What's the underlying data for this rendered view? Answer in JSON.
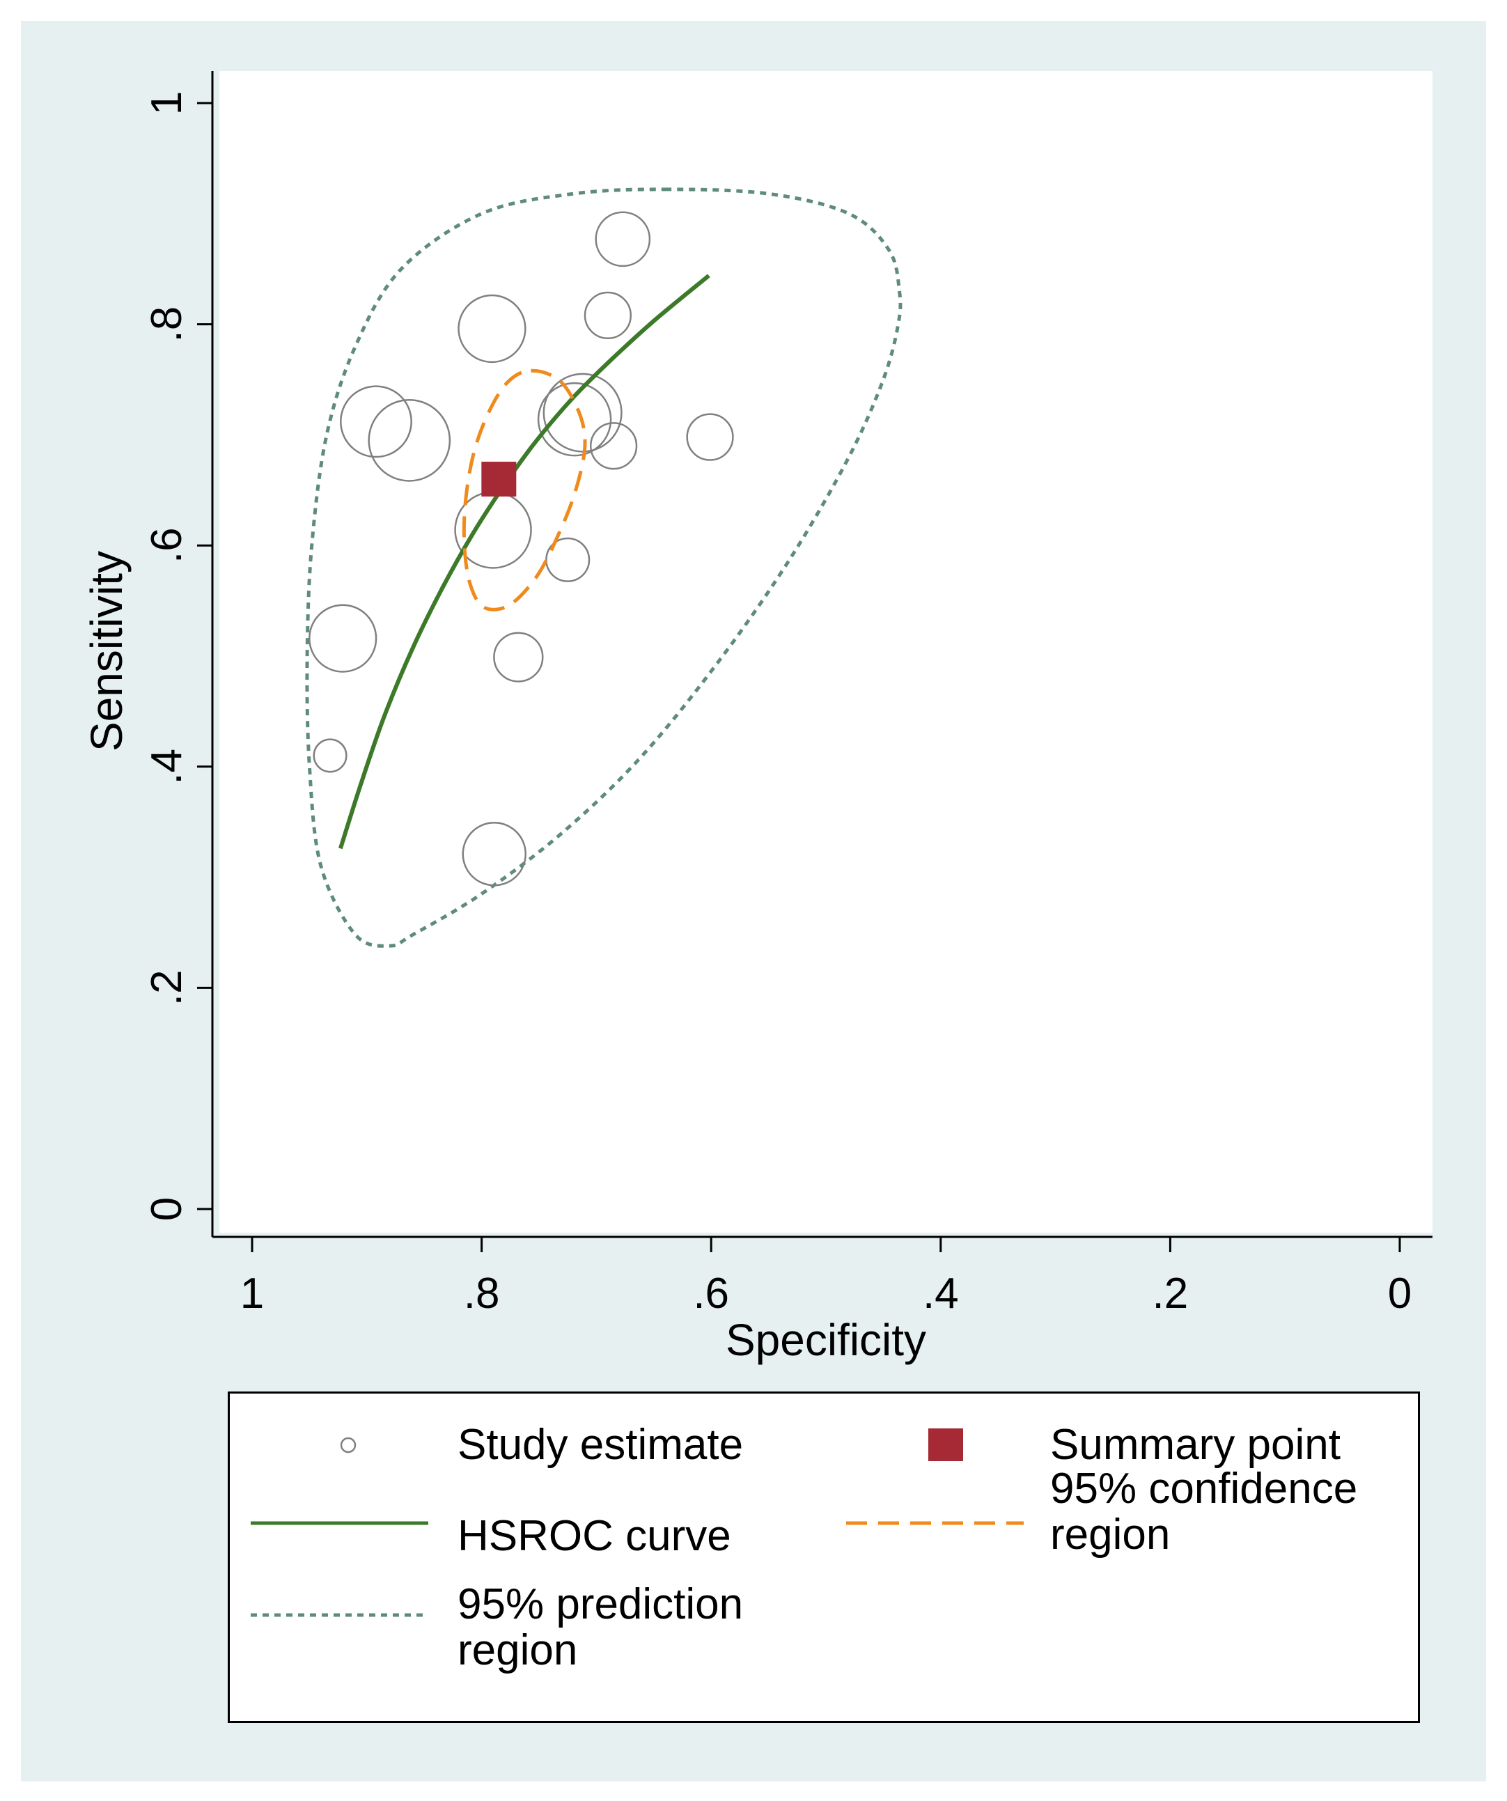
{
  "chart_data": {
    "type": "scatter",
    "xlabel": "Specificity",
    "ylabel": "Sensitivity",
    "xlim": [
      1,
      0
    ],
    "ylim": [
      0,
      1
    ],
    "x_ticks": [
      1,
      0.8,
      0.6,
      0.4,
      0.2,
      0
    ],
    "x_tick_labels": [
      "1",
      ".8",
      ".6",
      ".4",
      ".2",
      "0"
    ],
    "y_ticks": [
      0,
      0.2,
      0.4,
      0.6,
      0.8,
      1
    ],
    "y_tick_labels": [
      "0",
      ".2",
      ".4",
      ".6",
      ".8",
      "1"
    ],
    "grid": false,
    "study_estimates": [
      {
        "specificity": 0.677,
        "sensitivity": 0.877,
        "weight": 0.55
      },
      {
        "specificity": 0.69,
        "sensitivity": 0.808,
        "weight": 0.4
      },
      {
        "specificity": 0.791,
        "sensitivity": 0.796,
        "weight": 0.85
      },
      {
        "specificity": 0.892,
        "sensitivity": 0.712,
        "weight": 0.95
      },
      {
        "specificity": 0.863,
        "sensitivity": 0.695,
        "weight": 1.25
      },
      {
        "specificity": 0.719,
        "sensitivity": 0.714,
        "weight": 1.0
      },
      {
        "specificity": 0.712,
        "sensitivity": 0.72,
        "weight": 1.15
      },
      {
        "specificity": 0.685,
        "sensitivity": 0.69,
        "weight": 0.4
      },
      {
        "specificity": 0.601,
        "sensitivity": 0.698,
        "weight": 0.4
      },
      {
        "specificity": 0.79,
        "sensitivity": 0.614,
        "weight": 1.1
      },
      {
        "specificity": 0.725,
        "sensitivity": 0.587,
        "weight": 0.35
      },
      {
        "specificity": 0.921,
        "sensitivity": 0.516,
        "weight": 0.85
      },
      {
        "specificity": 0.768,
        "sensitivity": 0.499,
        "weight": 0.45
      },
      {
        "specificity": 0.932,
        "sensitivity": 0.41,
        "weight": 0.2
      },
      {
        "specificity": 0.789,
        "sensitivity": 0.321,
        "weight": 0.75
      }
    ],
    "summary_point": {
      "specificity": 0.785,
      "sensitivity": 0.66
    },
    "hsroc_curve": [
      [
        0.923,
        0.326
      ],
      [
        0.905,
        0.385
      ],
      [
        0.885,
        0.445
      ],
      [
        0.861,
        0.505
      ],
      [
        0.835,
        0.56
      ],
      [
        0.808,
        0.61
      ],
      [
        0.78,
        0.655
      ],
      [
        0.752,
        0.695
      ],
      [
        0.72,
        0.734
      ],
      [
        0.687,
        0.768
      ],
      [
        0.65,
        0.803
      ],
      [
        0.602,
        0.844
      ]
    ],
    "confidence_region": [
      [
        0.757,
        0.758
      ],
      [
        0.732,
        0.749
      ],
      [
        0.715,
        0.72
      ],
      [
        0.71,
        0.69
      ],
      [
        0.718,
        0.65
      ],
      [
        0.733,
        0.61
      ],
      [
        0.752,
        0.572
      ],
      [
        0.776,
        0.546
      ],
      [
        0.798,
        0.544
      ],
      [
        0.81,
        0.565
      ],
      [
        0.815,
        0.6
      ],
      [
        0.814,
        0.64
      ],
      [
        0.807,
        0.683
      ],
      [
        0.794,
        0.72
      ],
      [
        0.777,
        0.748
      ],
      [
        0.757,
        0.758
      ]
    ],
    "prediction_region": [
      [
        0.64,
        0.922
      ],
      [
        0.55,
        0.918
      ],
      [
        0.48,
        0.9
      ],
      [
        0.445,
        0.867
      ],
      [
        0.436,
        0.83
      ],
      [
        0.437,
        0.8
      ],
      [
        0.45,
        0.75
      ],
      [
        0.48,
        0.68
      ],
      [
        0.53,
        0.59
      ],
      [
        0.59,
        0.5
      ],
      [
        0.66,
        0.41
      ],
      [
        0.73,
        0.34
      ],
      [
        0.8,
        0.285
      ],
      [
        0.86,
        0.248
      ],
      [
        0.88,
        0.238
      ],
      [
        0.91,
        0.248
      ],
      [
        0.94,
        0.31
      ],
      [
        0.95,
        0.4
      ],
      [
        0.952,
        0.5
      ],
      [
        0.948,
        0.6
      ],
      [
        0.935,
        0.7
      ],
      [
        0.91,
        0.78
      ],
      [
        0.87,
        0.85
      ],
      [
        0.8,
        0.9
      ],
      [
        0.72,
        0.918
      ],
      [
        0.64,
        0.922
      ]
    ],
    "colors": {
      "study": "#808080",
      "summary": "#a52a35",
      "hsroc": "#3c7a2a",
      "confidence": "#f08a1c",
      "prediction": "#5f8c7a"
    }
  },
  "legend": {
    "study_estimate": "Study estimate",
    "summary_point": "Summary point",
    "hsroc_curve": "HSROC curve",
    "confidence_line1": "95% confidence",
    "confidence_line2": "region",
    "prediction_line1": "95% prediction",
    "prediction_line2": "region"
  }
}
